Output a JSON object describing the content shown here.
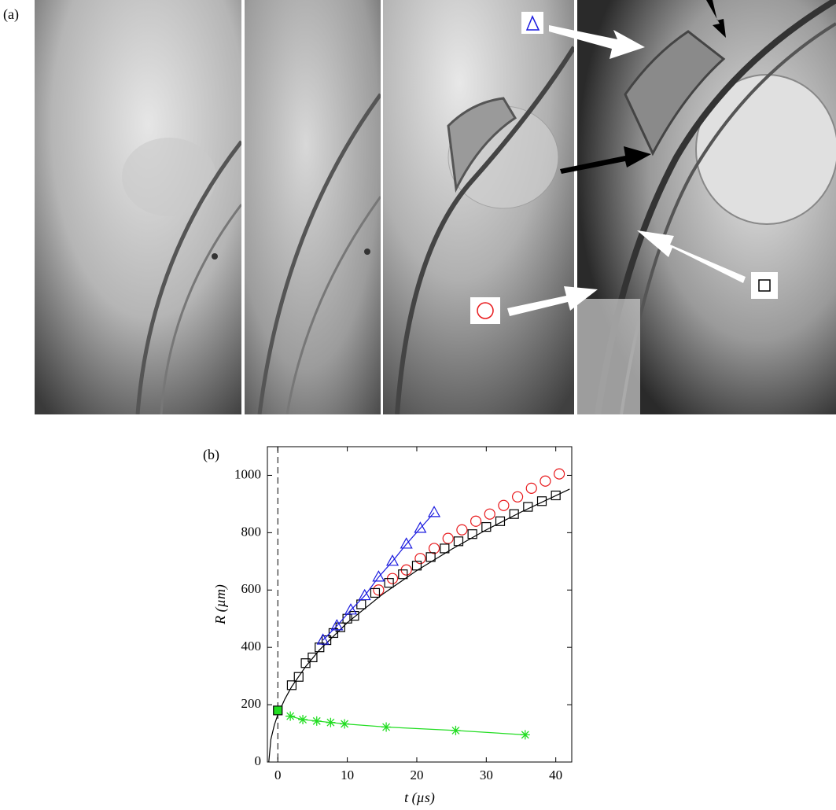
{
  "panel_a": {
    "label": "(a)"
  },
  "chart_data": {
    "type": "scatter",
    "title": "(b)",
    "xlabel": "t (µs)",
    "ylabel": "R (µm)",
    "xlim": [
      -1.5,
      42.3
    ],
    "ylim": [
      0,
      1100
    ],
    "xticks": [
      0,
      10,
      20,
      30,
      40
    ],
    "yticks": [
      0,
      200,
      400,
      600,
      800,
      1000
    ],
    "vline": 0,
    "series": [
      {
        "marker": "none",
        "line": true,
        "color": "#000000",
        "x": [
          -1.3,
          -1,
          -0.5,
          0,
          1,
          2,
          4,
          6,
          10,
          15,
          20,
          25,
          30,
          35,
          42
        ],
        "values": [
          0,
          79,
          129,
          165,
          219,
          263,
          333,
          391,
          486,
          584,
          668,
          742,
          810,
          872,
          952
        ]
      },
      {
        "marker": "circle",
        "line": false,
        "color": "#e8191c",
        "x": [
          14.5,
          16.5,
          18.5,
          20.5,
          22.5,
          24.5,
          26.5,
          28.5,
          30.5,
          32.5,
          34.5,
          36.5,
          38.5,
          40.5
        ],
        "values": [
          600,
          640,
          670,
          710,
          745,
          780,
          810,
          840,
          865,
          895,
          925,
          955,
          980,
          1005
        ]
      },
      {
        "marker": "square",
        "line": false,
        "color": "#000000",
        "x": [
          2,
          3,
          4,
          5,
          6,
          7,
          8,
          9,
          10,
          11,
          12,
          14,
          16,
          18,
          20,
          22,
          24,
          26,
          28,
          30,
          32,
          34,
          36,
          38,
          40
        ],
        "values": [
          268,
          297,
          345,
          365,
          400,
          425,
          450,
          470,
          500,
          510,
          550,
          590,
          625,
          655,
          685,
          715,
          745,
          770,
          795,
          820,
          840,
          865,
          890,
          910,
          930
        ]
      },
      {
        "marker": "triangle",
        "line": true,
        "color": "#1a1adf",
        "x": [
          6.5,
          8.5,
          10.5,
          12.5,
          14.5,
          16.5,
          18.5,
          20.5,
          22.5
        ],
        "values": [
          425,
          475,
          530,
          580,
          645,
          700,
          760,
          815,
          870
        ]
      },
      {
        "marker": "star",
        "line": true,
        "color": "#22dd22",
        "x": [
          1.8,
          3.6,
          5.6,
          7.6,
          9.6,
          15.6,
          25.6,
          35.6
        ],
        "values": [
          160,
          148,
          143,
          138,
          133,
          122,
          110,
          95
        ]
      },
      {
        "marker": "filled-square",
        "line": false,
        "color": "#22dd22",
        "x": [
          0
        ],
        "values": [
          180
        ]
      }
    ]
  }
}
